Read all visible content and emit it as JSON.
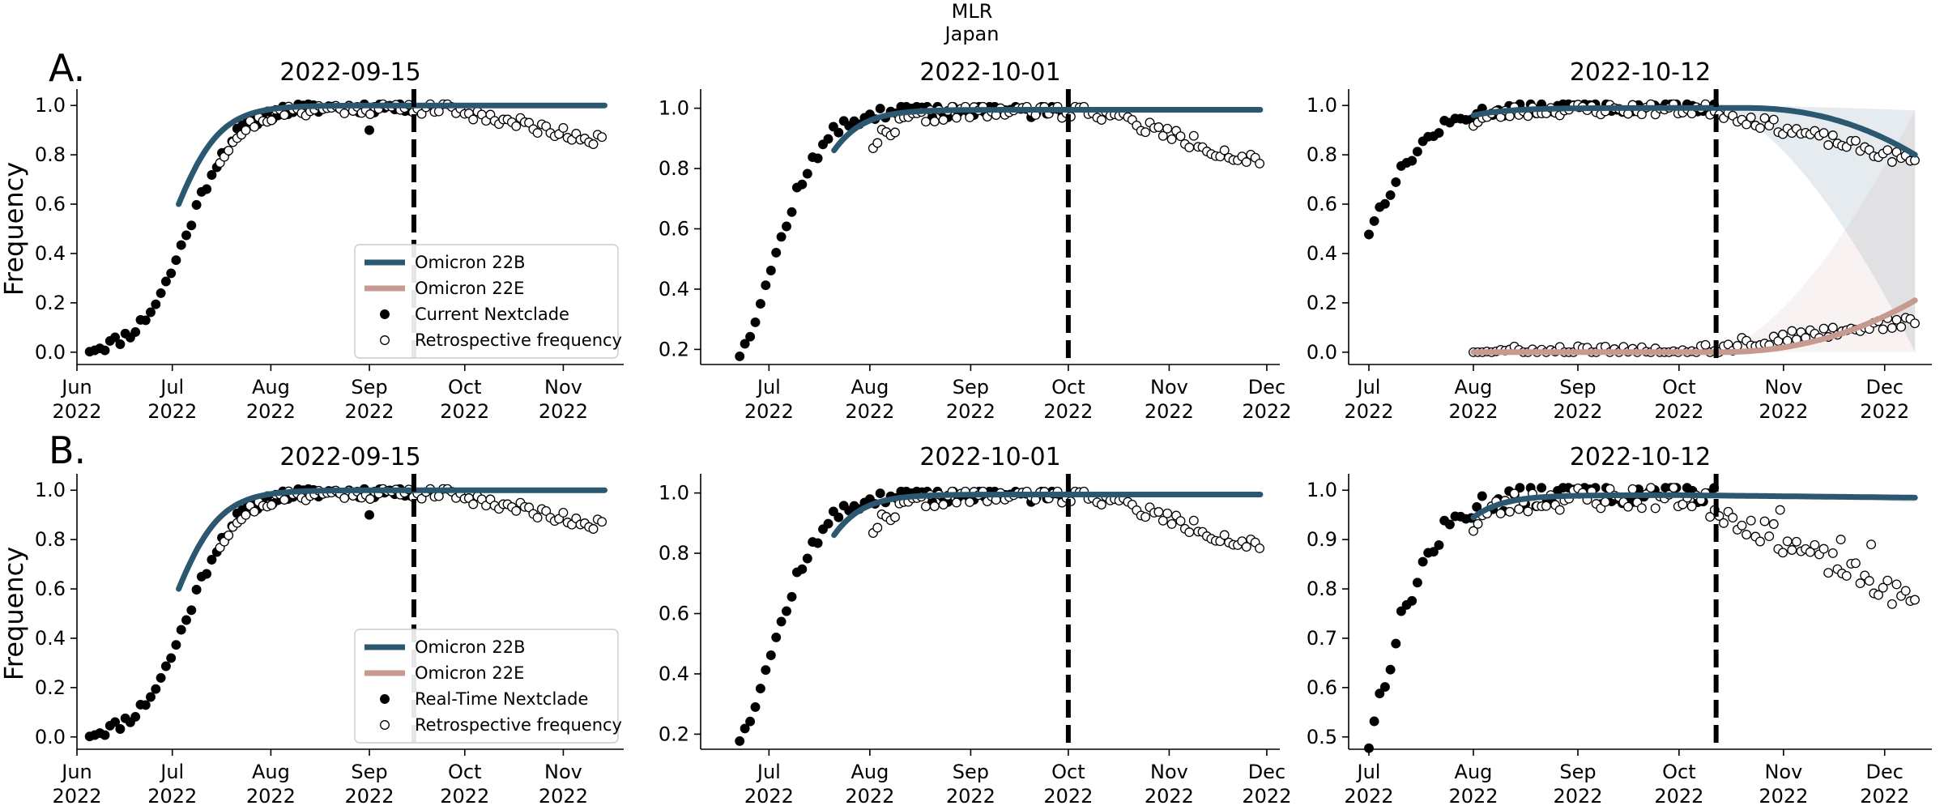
{
  "figure": {
    "suptitle": [
      "MLR",
      "Japan"
    ],
    "row_labels": [
      "A.",
      "B."
    ],
    "y_label": "Frequency"
  },
  "colors": {
    "omicron_22B": "#2b5770",
    "omicron_22E": "#c79a90",
    "current_nextclade": "#000000",
    "retrospective": "#ffffff"
  },
  "chart_data": [
    {
      "type": "scatter",
      "row": 0,
      "col": 0,
      "title": "2022-09-15",
      "ylabel": "Frequency",
      "xlim": [
        "2022-06-01",
        "2022-11-20"
      ],
      "ylim": [
        -0.05,
        1.05
      ],
      "yticks": [
        0.0,
        0.2,
        0.4,
        0.6,
        0.8,
        1.0
      ],
      "ytick_labels": [
        "0.0",
        "0.2",
        "0.4",
        "0.6",
        "0.8",
        "1.0"
      ],
      "xticks": [
        "2022-06-01",
        "2022-07-01",
        "2022-08-01",
        "2022-09-01",
        "2022-10-01",
        "2022-11-01"
      ],
      "xtick_labels": [
        [
          "Jun",
          "2022"
        ],
        [
          "Jul",
          "2022"
        ],
        [
          "Aug",
          "2022"
        ],
        [
          "Sep",
          "2022"
        ],
        [
          "Oct",
          "2022"
        ],
        [
          "Nov",
          "2022"
        ]
      ],
      "cutoff_date": "2022-09-15",
      "legend": {
        "position": "lower-right",
        "entries": [
          "Omicron 22B",
          "Omicron 22E",
          "Current Nextclade",
          "Retrospective frequency"
        ]
      },
      "series": [
        {
          "name": "Omicron 22B",
          "kind": "line",
          "variant": "22B",
          "x_start": "2022-07-03",
          "x_end": "2022-11-14",
          "y0": 0.6,
          "k": 0.13,
          "y_max": 1.0
        },
        {
          "name": "Current Nextclade",
          "kind": "points",
          "filled": true,
          "variant": "22B",
          "x_start": "2022-06-05",
          "x_end": "2022-09-15",
          "y0": 0.015,
          "k": 0.135,
          "y_max": 0.995,
          "seed": 11,
          "outliers": [
            [
              "2022-09-01",
              0.9
            ]
          ]
        },
        {
          "name": "Retrospective frequency",
          "kind": "points",
          "filled": false,
          "variant": "22B",
          "x_start": "2022-07-16",
          "x_end": "2022-11-14",
          "y0": 0.78,
          "k": 0.13,
          "y_max": 0.99,
          "decline_start": "2022-09-25",
          "y_end": 0.855,
          "seed": 21
        }
      ]
    },
    {
      "type": "scatter",
      "row": 0,
      "col": 1,
      "title": "2022-10-01",
      "xlim": [
        "2022-06-10",
        "2022-12-05"
      ],
      "ylim": [
        0.15,
        1.05
      ],
      "yticks": [
        0.2,
        0.4,
        0.6,
        0.8,
        1.0
      ],
      "ytick_labels": [
        "0.2",
        "0.4",
        "0.6",
        "0.8",
        "1.0"
      ],
      "xticks": [
        "2022-07-01",
        "2022-08-01",
        "2022-09-01",
        "2022-10-01",
        "2022-11-01",
        "2022-12-01"
      ],
      "xtick_labels": [
        [
          "Jul",
          "2022"
        ],
        [
          "Aug",
          "2022"
        ],
        [
          "Sep",
          "2022"
        ],
        [
          "Oct",
          "2022"
        ],
        [
          "Nov",
          "2022"
        ],
        [
          "Dec",
          "2022"
        ]
      ],
      "cutoff_date": "2022-10-01",
      "series": [
        {
          "name": "Omicron 22B",
          "kind": "line",
          "variant": "22B",
          "x_start": "2022-07-21",
          "x_end": "2022-11-29",
          "y0": 0.86,
          "k": 0.13,
          "y_max": 0.995
        },
        {
          "name": "Current Nextclade",
          "kind": "points",
          "filled": true,
          "variant": "22B",
          "x_start": "2022-06-22",
          "x_end": "2022-10-01",
          "y0": 0.19,
          "k": 0.135,
          "y_max": 0.995,
          "seed": 12
        },
        {
          "name": "Retrospective frequency",
          "kind": "points",
          "filled": false,
          "variant": "22B",
          "x_start": "2022-08-02",
          "x_end": "2022-11-29",
          "y0": 0.88,
          "k": 0.13,
          "y_max": 0.99,
          "decline_start": "2022-10-10",
          "y_end": 0.815,
          "seed": 22
        }
      ]
    },
    {
      "type": "scatter",
      "row": 0,
      "col": 2,
      "title": "2022-10-12",
      "xlim": [
        "2022-06-25",
        "2022-12-15"
      ],
      "ylim": [
        -0.05,
        1.05
      ],
      "yticks": [
        0.0,
        0.2,
        0.4,
        0.6,
        0.8,
        1.0
      ],
      "ytick_labels": [
        "0.0",
        "0.2",
        "0.4",
        "0.6",
        "0.8",
        "1.0"
      ],
      "xticks": [
        "2022-07-01",
        "2022-08-01",
        "2022-09-01",
        "2022-10-01",
        "2022-11-01",
        "2022-12-01"
      ],
      "xtick_labels": [
        [
          "Jul",
          "2022"
        ],
        [
          "Aug",
          "2022"
        ],
        [
          "Sep",
          "2022"
        ],
        [
          "Oct",
          "2022"
        ],
        [
          "Nov",
          "2022"
        ],
        [
          "Dec",
          "2022"
        ]
      ],
      "cutoff_date": "2022-10-12",
      "bands": [
        {
          "variant": "22B",
          "x_start": "2022-10-12",
          "x_end": "2022-12-10",
          "upper": [
            1.0,
            0.98
          ],
          "lower": [
            0.99,
            0.0
          ]
        },
        {
          "variant": "22E",
          "x_start": "2022-10-12",
          "x_end": "2022-12-10",
          "upper": [
            0.01,
            0.98
          ],
          "lower": [
            0.0,
            0.0
          ]
        }
      ],
      "series": [
        {
          "name": "Omicron 22B",
          "kind": "line",
          "variant": "22B",
          "x_start": "2022-08-01",
          "x_end": "2022-12-10",
          "y0": 0.96,
          "k": 0.1,
          "y_max": 0.99,
          "decline_start": "2022-10-20",
          "y_end": 0.8,
          "decline_power": 2.2
        },
        {
          "name": "Omicron 22E",
          "kind": "line",
          "variant": "22E",
          "x_start": "2022-08-01",
          "x_end": "2022-12-10",
          "y0": 0.0,
          "k": 0.0,
          "y_max": 0.0,
          "rise_start": "2022-10-12",
          "y_end": 0.21,
          "rise_power": 2.2
        },
        {
          "name": "Current Nextclade",
          "kind": "points",
          "filled": true,
          "variant": "22B",
          "x_start": "2022-07-01",
          "x_end": "2022-10-12",
          "y0": 0.49,
          "k": 0.11,
          "y_max": 0.995,
          "seed": 13
        },
        {
          "name": "Retrospective frequency",
          "kind": "points",
          "filled": false,
          "variant": "22B",
          "x_start": "2022-08-01",
          "x_end": "2022-12-10",
          "y0": 0.93,
          "k": 0.13,
          "y_max": 0.985,
          "decline_start": "2022-10-10",
          "y_end": 0.77,
          "seed": 23
        },
        {
          "name": "Retrospective frequency",
          "kind": "points",
          "filled": false,
          "variant": "22E",
          "x_start": "2022-08-01",
          "x_end": "2022-12-10",
          "y0": 0.0,
          "k": 0.0,
          "y_max": 0.0,
          "rise_start": "2022-10-01",
          "y_end": 0.13,
          "seed": 24
        }
      ]
    },
    {
      "type": "scatter",
      "row": 1,
      "col": 0,
      "title": "2022-09-15",
      "ylabel": "Frequency",
      "xlim": [
        "2022-06-01",
        "2022-11-20"
      ],
      "ylim": [
        -0.05,
        1.05
      ],
      "yticks": [
        0.0,
        0.2,
        0.4,
        0.6,
        0.8,
        1.0
      ],
      "ytick_labels": [
        "0.0",
        "0.2",
        "0.4",
        "0.6",
        "0.8",
        "1.0"
      ],
      "xticks": [
        "2022-06-01",
        "2022-07-01",
        "2022-08-01",
        "2022-09-01",
        "2022-10-01",
        "2022-11-01"
      ],
      "xtick_labels": [
        [
          "Jun",
          "2022"
        ],
        [
          "Jul",
          "2022"
        ],
        [
          "Aug",
          "2022"
        ],
        [
          "Sep",
          "2022"
        ],
        [
          "Oct",
          "2022"
        ],
        [
          "Nov",
          "2022"
        ]
      ],
      "cutoff_date": "2022-09-15",
      "legend": {
        "position": "lower-right",
        "entries": [
          "Omicron 22B",
          "Omicron 22E",
          "Real-Time Nextclade",
          "Retrospective frequency"
        ]
      },
      "series": [
        {
          "name": "Omicron 22B",
          "kind": "line",
          "variant": "22B",
          "x_start": "2022-07-03",
          "x_end": "2022-11-14",
          "y0": 0.6,
          "k": 0.13,
          "y_max": 1.0
        },
        {
          "name": "Real-Time Nextclade",
          "kind": "points",
          "filled": true,
          "variant": "22B",
          "x_start": "2022-06-05",
          "x_end": "2022-09-15",
          "y0": 0.015,
          "k": 0.135,
          "y_max": 0.995,
          "seed": 11,
          "outliers": [
            [
              "2022-09-01",
              0.9
            ]
          ]
        },
        {
          "name": "Retrospective frequency",
          "kind": "points",
          "filled": false,
          "variant": "22B",
          "x_start": "2022-07-16",
          "x_end": "2022-11-14",
          "y0": 0.78,
          "k": 0.13,
          "y_max": 0.99,
          "decline_start": "2022-09-25",
          "y_end": 0.855,
          "seed": 21
        }
      ]
    },
    {
      "type": "scatter",
      "row": 1,
      "col": 1,
      "title": "2022-10-01",
      "xlim": [
        "2022-06-10",
        "2022-12-05"
      ],
      "ylim": [
        0.15,
        1.05
      ],
      "yticks": [
        0.2,
        0.4,
        0.6,
        0.8,
        1.0
      ],
      "ytick_labels": [
        "0.2",
        "0.4",
        "0.6",
        "0.8",
        "1.0"
      ],
      "xticks": [
        "2022-07-01",
        "2022-08-01",
        "2022-09-01",
        "2022-10-01",
        "2022-11-01",
        "2022-12-01"
      ],
      "xtick_labels": [
        [
          "Jul",
          "2022"
        ],
        [
          "Aug",
          "2022"
        ],
        [
          "Sep",
          "2022"
        ],
        [
          "Oct",
          "2022"
        ],
        [
          "Nov",
          "2022"
        ],
        [
          "Dec",
          "2022"
        ]
      ],
      "cutoff_date": "2022-10-01",
      "series": [
        {
          "name": "Omicron 22B",
          "kind": "line",
          "variant": "22B",
          "x_start": "2022-07-21",
          "x_end": "2022-11-29",
          "y0": 0.86,
          "k": 0.13,
          "y_max": 0.995
        },
        {
          "name": "Real-Time Nextclade",
          "kind": "points",
          "filled": true,
          "variant": "22B",
          "x_start": "2022-06-22",
          "x_end": "2022-10-01",
          "y0": 0.19,
          "k": 0.135,
          "y_max": 0.995,
          "seed": 12
        },
        {
          "name": "Retrospective frequency",
          "kind": "points",
          "filled": false,
          "variant": "22B",
          "x_start": "2022-08-02",
          "x_end": "2022-11-29",
          "y0": 0.88,
          "k": 0.13,
          "y_max": 0.99,
          "decline_start": "2022-10-10",
          "y_end": 0.815,
          "seed": 22
        }
      ]
    },
    {
      "type": "scatter",
      "row": 1,
      "col": 2,
      "title": "2022-10-12",
      "xlim": [
        "2022-06-25",
        "2022-12-15"
      ],
      "ylim": [
        0.475,
        1.025
      ],
      "yticks": [
        0.5,
        0.6,
        0.7,
        0.8,
        0.9,
        1.0
      ],
      "ytick_labels": [
        "0.5",
        "0.6",
        "0.7",
        "0.8",
        "0.9",
        "1.0"
      ],
      "xticks": [
        "2022-07-01",
        "2022-08-01",
        "2022-09-01",
        "2022-10-01",
        "2022-11-01",
        "2022-12-01"
      ],
      "xtick_labels": [
        [
          "Jul",
          "2022"
        ],
        [
          "Aug",
          "2022"
        ],
        [
          "Sep",
          "2022"
        ],
        [
          "Oct",
          "2022"
        ],
        [
          "Nov",
          "2022"
        ],
        [
          "Dec",
          "2022"
        ]
      ],
      "cutoff_date": "2022-10-12",
      "bands": [
        {
          "variant": "22B",
          "x_start": "2022-10-12",
          "x_end": "2022-12-10",
          "upper": [
            0.995,
            0.99
          ],
          "lower": [
            0.99,
            0.975
          ]
        }
      ],
      "series": [
        {
          "name": "Omicron 22B",
          "kind": "line",
          "variant": "22B",
          "x_start": "2022-08-01",
          "x_end": "2022-12-10",
          "y0": 0.945,
          "k": 0.12,
          "y_max": 0.99,
          "decline_start": "2022-10-01",
          "y_end": 0.985,
          "decline_power": 1.0
        },
        {
          "name": "Real-Time Nextclade",
          "kind": "points",
          "filled": true,
          "variant": "22B",
          "x_start": "2022-07-01",
          "x_end": "2022-10-12",
          "y0": 0.49,
          "k": 0.11,
          "y_max": 0.995,
          "seed": 13
        },
        {
          "name": "Retrospective frequency",
          "kind": "points",
          "filled": false,
          "variant": "22B",
          "x_start": "2022-08-01",
          "x_end": "2022-12-10",
          "y0": 0.93,
          "k": 0.13,
          "y_max": 0.985,
          "decline_start": "2022-10-05",
          "y_end": 0.77,
          "seed": 23,
          "outliers": [
            [
              "2022-10-31",
              0.96
            ],
            [
              "2022-11-18",
              0.9
            ],
            [
              "2022-11-27",
              0.89
            ]
          ]
        }
      ]
    }
  ]
}
